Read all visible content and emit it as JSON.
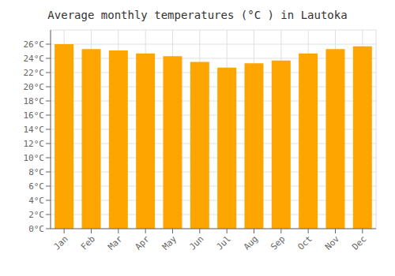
{
  "chart_data": {
    "type": "bar",
    "title": "Average monthly temperatures (°C ) in Lautoka",
    "categories": [
      "Jan",
      "Feb",
      "Mar",
      "Apr",
      "May",
      "Jun",
      "Jul",
      "Aug",
      "Sep",
      "Oct",
      "Nov",
      "Dec"
    ],
    "values": [
      26.0,
      25.3,
      25.1,
      24.7,
      24.3,
      23.5,
      22.7,
      23.3,
      23.7,
      24.7,
      25.3,
      25.7
    ],
    "color": "#FFA500",
    "ylim": [
      0,
      28
    ],
    "yticks": [
      {
        "value": 0,
        "label": "0°C"
      },
      {
        "value": 2,
        "label": "2°C"
      },
      {
        "value": 4,
        "label": "4°C"
      },
      {
        "value": 6,
        "label": "6°C"
      },
      {
        "value": 8,
        "label": "8°C"
      },
      {
        "value": 10,
        "label": "10°C"
      },
      {
        "value": 12,
        "label": "12°C"
      },
      {
        "value": 14,
        "label": "14°C"
      },
      {
        "value": 16,
        "label": "16°C"
      },
      {
        "value": 18,
        "label": "18°C"
      },
      {
        "value": 20,
        "label": "20°C"
      },
      {
        "value": 22,
        "label": "22°C"
      },
      {
        "value": 24,
        "label": "24°C"
      },
      {
        "value": 26,
        "label": "26°C"
      }
    ],
    "grid": true
  }
}
